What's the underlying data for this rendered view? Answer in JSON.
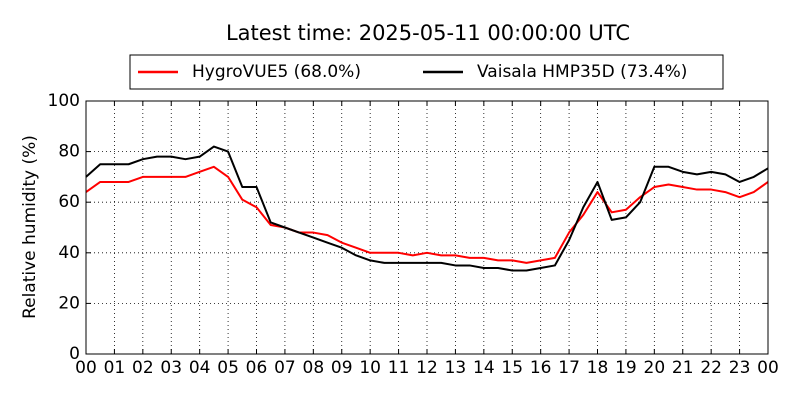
{
  "chart_data": {
    "type": "line",
    "title": "Latest time: 2025-05-11 00:00:00 UTC",
    "ylabel": "Relative humidity (%)",
    "x": [
      0,
      0.5,
      1,
      1.5,
      2,
      2.5,
      3,
      3.5,
      4,
      4.5,
      5,
      5.5,
      6,
      6.5,
      7,
      7.5,
      8,
      8.5,
      9,
      9.5,
      10,
      10.5,
      11,
      11.5,
      12,
      12.5,
      13,
      13.5,
      14,
      14.5,
      15,
      15.5,
      16,
      16.5,
      17,
      17.5,
      18,
      18.5,
      19,
      19.5,
      20,
      20.5,
      21,
      21.5,
      22,
      22.5,
      23,
      23.5,
      24
    ],
    "series": [
      {
        "name": "HygroVUE5 (68.0%)",
        "color": "#ff0000",
        "values": [
          64,
          68,
          68,
          68,
          70,
          70,
          70,
          70,
          72,
          74,
          70,
          61,
          58,
          51,
          50,
          48,
          48,
          47,
          44,
          42,
          40,
          40,
          40,
          39,
          40,
          39,
          39,
          38,
          38,
          37,
          37,
          36,
          37,
          38,
          48,
          55,
          64,
          56,
          57,
          62,
          66,
          67,
          66,
          65,
          65,
          64,
          62,
          64,
          68
        ]
      },
      {
        "name": "Vaisala HMP35D (73.4%)",
        "color": "#000000",
        "values": [
          70,
          75,
          75,
          75,
          77,
          78,
          78,
          77,
          78,
          82,
          80,
          66,
          66,
          52,
          50,
          48,
          46,
          44,
          42,
          39,
          37,
          36,
          36,
          36,
          36,
          36,
          35,
          35,
          34,
          34,
          33,
          33,
          34,
          35,
          45,
          58,
          68,
          53,
          54,
          60,
          74,
          74,
          72,
          71,
          72,
          71,
          68,
          70,
          73.4
        ]
      }
    ],
    "xlim": [
      0,
      24
    ],
    "xticks": [
      {
        "value": 0,
        "label": "00"
      },
      {
        "value": 1,
        "label": "01"
      },
      {
        "value": 2,
        "label": "02"
      },
      {
        "value": 3,
        "label": "03"
      },
      {
        "value": 4,
        "label": "04"
      },
      {
        "value": 5,
        "label": "05"
      },
      {
        "value": 6,
        "label": "06"
      },
      {
        "value": 7,
        "label": "07"
      },
      {
        "value": 8,
        "label": "08"
      },
      {
        "value": 9,
        "label": "09"
      },
      {
        "value": 10,
        "label": "10"
      },
      {
        "value": 11,
        "label": "11"
      },
      {
        "value": 12,
        "label": "12"
      },
      {
        "value": 13,
        "label": "13"
      },
      {
        "value": 14,
        "label": "14"
      },
      {
        "value": 15,
        "label": "15"
      },
      {
        "value": 16,
        "label": "16"
      },
      {
        "value": 17,
        "label": "17"
      },
      {
        "value": 18,
        "label": "18"
      },
      {
        "value": 19,
        "label": "19"
      },
      {
        "value": 20,
        "label": "20"
      },
      {
        "value": 21,
        "label": "21"
      },
      {
        "value": 22,
        "label": "22"
      },
      {
        "value": 23,
        "label": "23"
      },
      {
        "value": 24,
        "label": "00"
      }
    ],
    "ylim": [
      0,
      100
    ],
    "yticks": [
      0,
      20,
      40,
      60,
      80,
      100
    ],
    "grid": true,
    "legend": "top"
  }
}
